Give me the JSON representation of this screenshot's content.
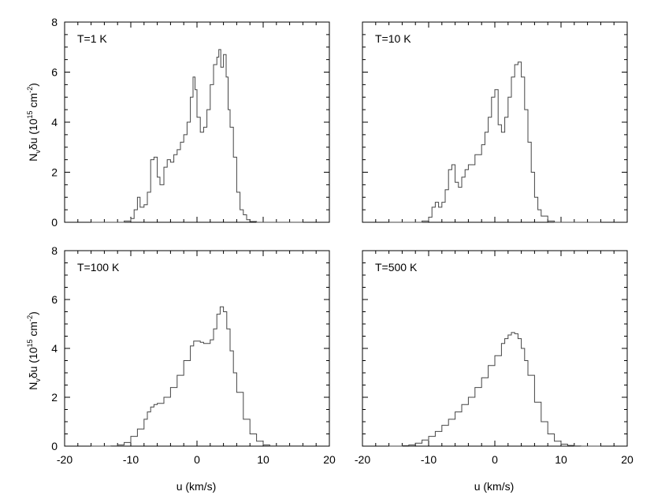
{
  "chart_data": {
    "type": "line",
    "layout": "2x2 grid of panels sharing axes",
    "xlim": [
      -20,
      20
    ],
    "ylim": [
      0,
      8
    ],
    "x_ticks": [
      -20,
      -10,
      0,
      10,
      20
    ],
    "y_ticks": [
      0,
      2,
      4,
      6,
      8
    ],
    "x_tick_labels": [
      "-20",
      "-10",
      "0",
      "10",
      "20"
    ],
    "y_tick_labels": [
      "0",
      "2",
      "4",
      "6",
      "8"
    ],
    "xlabel": "u (km/s)",
    "ylabel": {
      "base": "N",
      "sub": "v",
      "mid": "δu (10",
      "sup": "15",
      "unit": " cm",
      "unit_sup": "-2",
      "close": ")"
    },
    "grid": false,
    "legend": "none",
    "line_color": "#444444",
    "panels": [
      {
        "label": "T=1 K",
        "x": [
          -16,
          -11,
          -10,
          -9.5,
          -9,
          -8.6,
          -8,
          -7.5,
          -7,
          -6.5,
          -6,
          -5.6,
          -5,
          -4.5,
          -4,
          -3.5,
          -3,
          -2.5,
          -2,
          -1.5,
          -1,
          -0.6,
          -0.3,
          0,
          0.5,
          1,
          1.5,
          2,
          2.5,
          3,
          3.3,
          3.6,
          4,
          4.4,
          4.7,
          5,
          5.5,
          6,
          6.5,
          7,
          7.5,
          8,
          9,
          16
        ],
        "y": [
          0,
          0.05,
          0.15,
          0.5,
          1.0,
          0.6,
          0.7,
          1.2,
          2.5,
          2.6,
          1.8,
          1.5,
          2.2,
          2.5,
          2.4,
          2.7,
          2.9,
          3.2,
          3.5,
          4.0,
          5.0,
          5.8,
          5.3,
          4.2,
          3.6,
          3.8,
          4.5,
          5.5,
          6.3,
          6.6,
          6.9,
          6.2,
          6.7,
          5.8,
          4.5,
          3.8,
          2.6,
          1.2,
          0.5,
          0.3,
          0.1,
          0.03,
          0,
          0
        ]
      },
      {
        "label": "T=10 K",
        "x": [
          -16,
          -11,
          -10,
          -9.5,
          -9,
          -8.5,
          -8,
          -7.5,
          -7,
          -6.5,
          -6,
          -5.5,
          -5,
          -4.5,
          -4,
          -3,
          -2,
          -1.5,
          -1,
          -0.5,
          0,
          0.5,
          1,
          1.5,
          2,
          2.5,
          3,
          3.5,
          4,
          4.5,
          5,
          5.5,
          6,
          6.5,
          7,
          8,
          9,
          16
        ],
        "y": [
          0,
          0.05,
          0.2,
          0.6,
          0.8,
          0.6,
          0.8,
          1.3,
          2.1,
          2.3,
          1.6,
          1.4,
          1.8,
          2.1,
          2.3,
          2.7,
          3.1,
          3.6,
          4.2,
          5.0,
          5.3,
          3.9,
          3.6,
          4.2,
          5.0,
          5.8,
          6.3,
          6.4,
          5.8,
          4.5,
          3.2,
          2.0,
          1.0,
          0.5,
          0.25,
          0.05,
          0,
          0
        ]
      },
      {
        "label": "T=100 K",
        "x": [
          -16,
          -13,
          -12,
          -11,
          -10,
          -9,
          -8,
          -7.5,
          -7,
          -6.5,
          -6,
          -5,
          -4,
          -3,
          -2,
          -1,
          -0.5,
          0,
          0.5,
          1,
          2,
          2.5,
          3,
          3.5,
          4,
          4.5,
          5,
          5.5,
          6,
          7,
          8,
          9,
          10,
          11,
          16
        ],
        "y": [
          0,
          0.01,
          0.05,
          0.15,
          0.4,
          0.7,
          1.1,
          1.4,
          1.6,
          1.7,
          1.75,
          2.0,
          2.4,
          2.9,
          3.5,
          4.1,
          4.3,
          4.3,
          4.25,
          4.2,
          4.35,
          4.8,
          5.4,
          5.7,
          5.5,
          4.8,
          3.9,
          3.0,
          2.2,
          1.1,
          0.5,
          0.2,
          0.05,
          0.01,
          0
        ]
      },
      {
        "label": "T=500 K",
        "x": [
          -16,
          -14,
          -13,
          -12,
          -11,
          -10,
          -9,
          -8,
          -7,
          -6,
          -5,
          -4,
          -3,
          -2,
          -1,
          0,
          1,
          1.5,
          2,
          2.5,
          3,
          3.5,
          4,
          4.5,
          5,
          6,
          7,
          8,
          9,
          10,
          11,
          12,
          13,
          16
        ],
        "y": [
          0,
          0.02,
          0.05,
          0.12,
          0.25,
          0.4,
          0.6,
          0.85,
          1.1,
          1.4,
          1.7,
          2.0,
          2.4,
          2.8,
          3.3,
          3.7,
          4.2,
          4.4,
          4.55,
          4.65,
          4.6,
          4.4,
          4.0,
          3.5,
          2.9,
          1.8,
          1.0,
          0.5,
          0.2,
          0.08,
          0.03,
          0.01,
          0,
          0
        ]
      }
    ]
  }
}
